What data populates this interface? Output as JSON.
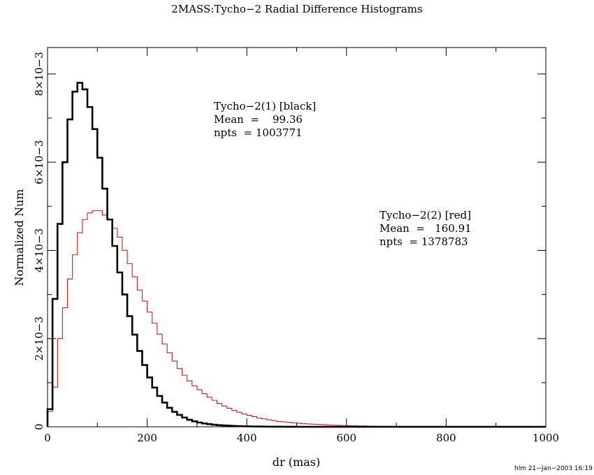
{
  "chart_data": {
    "type": "bar",
    "title": "2MASS:Tycho−2 Radial Difference Histograms",
    "xlabel": "dr (mas)",
    "ylabel": "Normalized Num",
    "xlim": [
      0,
      1000
    ],
    "ylim": [
      0,
      0.0086
    ],
    "x_ticks": [
      {
        "value": 0,
        "label": "0"
      },
      {
        "value": 200,
        "label": "200"
      },
      {
        "value": 400,
        "label": "400"
      },
      {
        "value": 600,
        "label": "600"
      },
      {
        "value": 800,
        "label": "800"
      },
      {
        "value": 1000,
        "label": "1000"
      }
    ],
    "y_ticks": [
      {
        "value": 0,
        "label": "0"
      },
      {
        "value": 0.002,
        "label": "2×10−3"
      },
      {
        "value": 0.004,
        "label": "4×10−3"
      },
      {
        "value": 0.006,
        "label": "6×10−3"
      },
      {
        "value": 0.008,
        "label": "8×10−3"
      }
    ],
    "footer": "hlm 21−Jan−2003 16:19",
    "bin_width": 10,
    "series": [
      {
        "name": "Tycho−2(1) [black]",
        "color": "#000000",
        "annotation": [
          "Tycho−2(1) [black]",
          "Mean  =    99.36",
          "npts  = 1003771"
        ],
        "values": [
          0.0004,
          0.0029,
          0.0046,
          0.006,
          0.00697,
          0.0076,
          0.0078,
          0.00765,
          0.00725,
          0.00675,
          0.0061,
          0.0054,
          0.0047,
          0.0041,
          0.0035,
          0.003,
          0.00251,
          0.00209,
          0.00172,
          0.0014,
          0.00112,
          0.00089,
          0.0007,
          0.00055,
          0.00043,
          0.00034,
          0.00027,
          0.00021,
          0.00016,
          0.000125,
          9.7e-05,
          7.6e-05,
          6e-05,
          4.7e-05,
          3.7e-05,
          3e-05,
          2.4e-05,
          1.9e-05,
          1.5e-05,
          1.2e-05,
          1e-05,
          8e-06,
          6.5e-06,
          5e-06,
          4e-06,
          3e-06,
          2.5e-06,
          2e-06,
          1.5e-06,
          1e-06
        ]
      },
      {
        "name": "Tycho−2(2) [red]",
        "color": "#d11b1b",
        "annotation": [
          "Tycho−2(2) [red]",
          "Mean  =   160.91",
          "npts  = 1378783"
        ],
        "values": [
          0.00035,
          0.0009,
          0.002,
          0.0027,
          0.00335,
          0.0039,
          0.0044,
          0.0047,
          0.00485,
          0.0049,
          0.0049,
          0.0048,
          0.0047,
          0.0045,
          0.0043,
          0.004,
          0.0037,
          0.0034,
          0.0031,
          0.00285,
          0.0026,
          0.00235,
          0.0021,
          0.00188,
          0.00168,
          0.00149,
          0.00132,
          0.00117,
          0.00104,
          0.00093,
          0.00084,
          0.00075,
          0.00067,
          0.0006,
          0.00053,
          0.00047,
          0.00042,
          0.00037,
          0.00033,
          0.00029,
          0.00026,
          0.00023,
          0.0002,
          0.00018,
          0.00016,
          0.00014,
          0.00012,
          0.00011,
          0.0001,
          9e-05,
          8e-05,
          7e-05,
          6.4e-05,
          5.8e-05,
          5.2e-05,
          4.6e-05,
          4.1e-05,
          3.6e-05,
          3.2e-05,
          2.8e-05,
          2.5e-05,
          2.2e-05,
          2e-05,
          1.8e-05,
          1.6e-05,
          1.4e-05,
          1.2e-05,
          1e-05,
          9e-06,
          8e-06,
          7e-06,
          6e-06,
          5e-06,
          4.5e-06,
          4e-06,
          3.5e-06,
          3e-06,
          2.5e-06,
          2e-06,
          1.8e-06
        ]
      }
    ]
  }
}
